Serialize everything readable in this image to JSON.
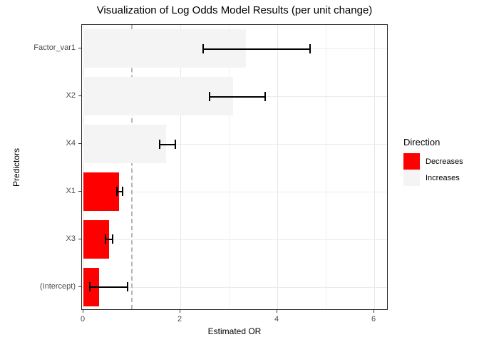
{
  "chart_data": {
    "type": "bar",
    "orientation": "horizontal",
    "title": "Visualization of Log Odds Model Results (per unit change)",
    "xlabel": "Estimated OR",
    "ylabel": "Predictors",
    "xlim": [
      0,
      6.3
    ],
    "xticks": [
      0,
      2,
      4,
      6
    ],
    "xtick_labels": [
      "0",
      "2",
      "4",
      "6"
    ],
    "xminorticks": [
      1,
      3,
      5
    ],
    "grid": true,
    "reference_line": {
      "x": 1,
      "style": "dashed",
      "color": "#b5b5b5"
    },
    "categories": [
      "Factor_var1",
      "X2",
      "X4",
      "X1",
      "X3",
      "(Intercept)"
    ],
    "series": [
      {
        "name": "Estimated OR",
        "values": [
          3.35,
          3.09,
          1.7,
          0.74,
          0.53,
          0.33
        ],
        "ci_low": [
          2.45,
          2.59,
          1.56,
          0.67,
          0.44,
          0.12
        ],
        "ci_high": [
          4.68,
          3.77,
          1.91,
          0.82,
          0.62,
          0.93
        ],
        "direction": [
          "Increases",
          "Increases",
          "Increases",
          "Decreases",
          "Decreases",
          "Decreases"
        ]
      }
    ],
    "legend": {
      "title": "Direction",
      "position": "right",
      "entries": [
        {
          "label": "Decreases",
          "color": "#ff0000"
        },
        {
          "label": "Increases",
          "color": "#f4f4f4"
        }
      ]
    },
    "colors": {
      "bar_decreases": "#ff0000",
      "bar_increases": "#f4f4f4",
      "errorbar": "#000000",
      "panel_border": "#2b2b2b",
      "grid_major": "#e7e7e7",
      "grid_minor": "#f2f2f2",
      "tick_text": "#4d4d4d"
    }
  }
}
